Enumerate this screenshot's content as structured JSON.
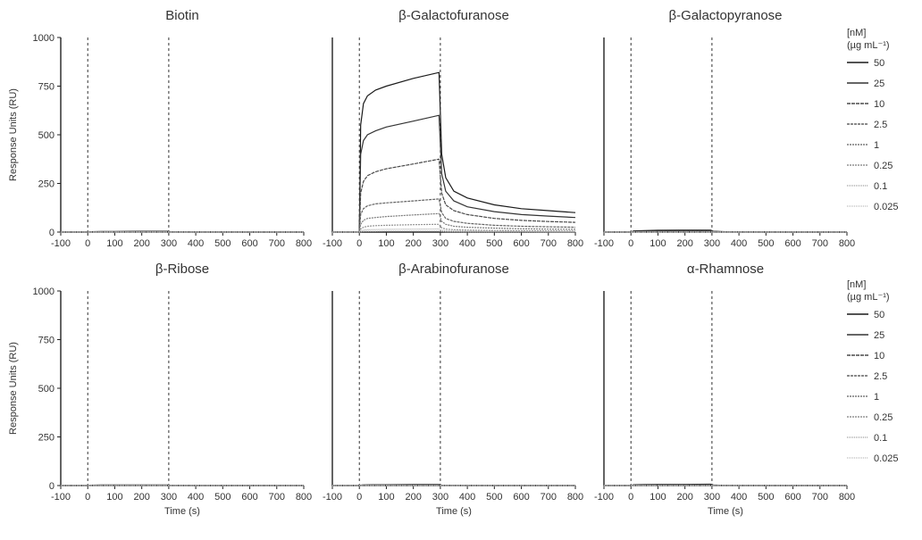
{
  "chart_data": [
    {
      "type": "line",
      "title": "Biotin",
      "xlabel": "",
      "ylabel": "Response Units (RU)",
      "xlim": [
        -100,
        800
      ],
      "ylim": [
        0,
        1000
      ],
      "xticks": [
        "-100",
        "0",
        "100",
        "200",
        "300",
        "400",
        "500",
        "600",
        "700",
        "800"
      ],
      "yticks": [
        "0",
        "250",
        "500",
        "750",
        "1000"
      ],
      "markers": [
        0,
        300
      ],
      "x": [
        -100,
        0,
        10,
        50,
        100,
        200,
        295,
        305,
        350,
        400,
        500,
        600,
        700,
        800
      ],
      "series": [
        {
          "name": "50",
          "values": [
            0,
            0,
            2,
            3,
            3,
            4,
            4,
            2,
            1,
            1,
            1,
            0,
            0,
            0
          ]
        },
        {
          "name": "25",
          "values": [
            0,
            0,
            1,
            2,
            2,
            3,
            3,
            1,
            1,
            0,
            0,
            0,
            0,
            0
          ]
        },
        {
          "name": "10",
          "values": [
            0,
            0,
            1,
            1,
            1,
            2,
            2,
            1,
            0,
            0,
            0,
            0,
            0,
            0
          ]
        },
        {
          "name": "2.5",
          "values": [
            0,
            0,
            0,
            1,
            1,
            1,
            1,
            0,
            0,
            0,
            0,
            0,
            0,
            0
          ]
        },
        {
          "name": "1",
          "values": [
            0,
            0,
            0,
            0,
            1,
            1,
            1,
            0,
            0,
            0,
            0,
            0,
            0,
            0
          ]
        },
        {
          "name": "0.25",
          "values": [
            0,
            0,
            0,
            0,
            0,
            0,
            0,
            0,
            0,
            0,
            0,
            0,
            0,
            0
          ]
        },
        {
          "name": "0.1",
          "values": [
            0,
            0,
            0,
            0,
            0,
            0,
            0,
            0,
            0,
            0,
            0,
            0,
            0,
            0
          ]
        },
        {
          "name": "0.025",
          "values": [
            0,
            0,
            0,
            0,
            0,
            0,
            0,
            0,
            0,
            0,
            0,
            0,
            0,
            0
          ]
        }
      ]
    },
    {
      "type": "line",
      "title": "β-Galactofuranose",
      "xlabel": "",
      "ylabel": "",
      "xlim": [
        -100,
        800
      ],
      "ylim": [
        0,
        1000
      ],
      "xticks": [
        "-100",
        "0",
        "100",
        "200",
        "300",
        "400",
        "500",
        "600",
        "700",
        "800"
      ],
      "yticks": [],
      "markers": [
        0,
        300
      ],
      "x": [
        -100,
        0,
        5,
        15,
        30,
        60,
        100,
        200,
        295,
        305,
        320,
        350,
        400,
        500,
        600,
        700,
        800
      ],
      "series": [
        {
          "name": "50",
          "values": [
            0,
            0,
            550,
            660,
            700,
            730,
            750,
            790,
            820,
            400,
            280,
            210,
            175,
            140,
            120,
            110,
            100
          ]
        },
        {
          "name": "25",
          "values": [
            0,
            0,
            400,
            470,
            500,
            520,
            540,
            570,
            600,
            300,
            210,
            160,
            130,
            105,
            90,
            82,
            75
          ]
        },
        {
          "name": "10",
          "values": [
            0,
            0,
            200,
            260,
            290,
            310,
            325,
            350,
            375,
            200,
            140,
            110,
            90,
            70,
            60,
            54,
            50
          ]
        },
        {
          "name": "2.5",
          "values": [
            0,
            0,
            90,
            120,
            135,
            145,
            150,
            160,
            170,
            100,
            70,
            55,
            45,
            35,
            30,
            27,
            25
          ]
        },
        {
          "name": "1",
          "values": [
            0,
            0,
            40,
            60,
            70,
            75,
            80,
            88,
            95,
            55,
            40,
            30,
            25,
            20,
            17,
            15,
            14
          ]
        },
        {
          "name": "0.25",
          "values": [
            0,
            0,
            15,
            25,
            30,
            33,
            35,
            38,
            40,
            22,
            15,
            12,
            10,
            8,
            7,
            6,
            5
          ]
        },
        {
          "name": "0.1",
          "values": [
            0,
            0,
            5,
            10,
            12,
            13,
            14,
            15,
            16,
            9,
            6,
            5,
            4,
            3,
            3,
            2,
            2
          ]
        },
        {
          "name": "0.025",
          "values": [
            0,
            0,
            2,
            3,
            4,
            4,
            5,
            5,
            5,
            3,
            2,
            2,
            1,
            1,
            1,
            1,
            1
          ]
        }
      ]
    },
    {
      "type": "line",
      "title": "β-Galactopyranose",
      "xlabel": "",
      "ylabel": "",
      "xlim": [
        -100,
        800
      ],
      "ylim": [
        0,
        1000
      ],
      "xticks": [
        "-100",
        "0",
        "100",
        "200",
        "300",
        "400",
        "500",
        "600",
        "700",
        "800"
      ],
      "yticks": [],
      "markers": [
        0,
        300
      ],
      "x": [
        -100,
        0,
        10,
        50,
        100,
        200,
        295,
        305,
        350,
        400,
        500,
        600,
        700,
        800
      ],
      "series": [
        {
          "name": "50",
          "values": [
            0,
            0,
            6,
            8,
            9,
            10,
            10,
            4,
            2,
            1,
            1,
            0,
            0,
            0
          ]
        },
        {
          "name": "25",
          "values": [
            0,
            0,
            4,
            5,
            6,
            6,
            7,
            3,
            1,
            1,
            0,
            0,
            0,
            0
          ]
        },
        {
          "name": "10",
          "values": [
            0,
            0,
            2,
            3,
            3,
            4,
            4,
            2,
            1,
            0,
            0,
            0,
            0,
            0
          ]
        },
        {
          "name": "2.5",
          "values": [
            0,
            0,
            1,
            2,
            2,
            2,
            2,
            1,
            0,
            0,
            0,
            0,
            0,
            0
          ]
        },
        {
          "name": "1",
          "values": [
            0,
            0,
            1,
            1,
            1,
            1,
            1,
            0,
            0,
            0,
            0,
            0,
            0,
            0
          ]
        },
        {
          "name": "0.25",
          "values": [
            0,
            0,
            0,
            0,
            0,
            0,
            0,
            0,
            0,
            0,
            0,
            0,
            0,
            0
          ]
        },
        {
          "name": "0.1",
          "values": [
            0,
            0,
            0,
            0,
            0,
            0,
            0,
            0,
            0,
            0,
            0,
            0,
            0,
            0
          ]
        },
        {
          "name": "0.025",
          "values": [
            0,
            0,
            0,
            0,
            0,
            0,
            0,
            0,
            0,
            0,
            0,
            0,
            0,
            0
          ]
        }
      ]
    },
    {
      "type": "line",
      "title": "β-Ribose",
      "xlabel": "Time (s)",
      "ylabel": "Response Units (RU)",
      "xlim": [
        -100,
        800
      ],
      "ylim": [
        0,
        1000
      ],
      "xticks": [
        "-100",
        "0",
        "100",
        "200",
        "300",
        "400",
        "500",
        "600",
        "700",
        "800"
      ],
      "yticks": [
        "0",
        "250",
        "500",
        "750",
        "1000"
      ],
      "markers": [
        0,
        300
      ],
      "x": [
        -100,
        0,
        10,
        50,
        100,
        200,
        295,
        305,
        350,
        400,
        500,
        600,
        700,
        800
      ],
      "series": [
        {
          "name": "50",
          "values": [
            0,
            0,
            2,
            3,
            3,
            3,
            3,
            1,
            1,
            0,
            0,
            0,
            0,
            0
          ]
        },
        {
          "name": "25",
          "values": [
            0,
            0,
            1,
            2,
            2,
            2,
            2,
            1,
            0,
            0,
            0,
            0,
            0,
            0
          ]
        },
        {
          "name": "10",
          "values": [
            0,
            0,
            1,
            1,
            1,
            1,
            1,
            0,
            0,
            0,
            0,
            0,
            0,
            0
          ]
        },
        {
          "name": "2.5",
          "values": [
            0,
            0,
            0,
            1,
            1,
            1,
            1,
            0,
            0,
            0,
            0,
            0,
            0,
            0
          ]
        },
        {
          "name": "1",
          "values": [
            0,
            0,
            0,
            0,
            0,
            0,
            0,
            0,
            0,
            0,
            0,
            0,
            0,
            0
          ]
        },
        {
          "name": "0.25",
          "values": [
            0,
            0,
            0,
            0,
            0,
            0,
            0,
            0,
            0,
            0,
            0,
            0,
            0,
            0
          ]
        },
        {
          "name": "0.1",
          "values": [
            0,
            0,
            0,
            0,
            0,
            0,
            0,
            0,
            0,
            0,
            0,
            0,
            0,
            0
          ]
        },
        {
          "name": "0.025",
          "values": [
            0,
            0,
            0,
            0,
            0,
            0,
            0,
            0,
            0,
            0,
            0,
            0,
            0,
            0
          ]
        }
      ]
    },
    {
      "type": "line",
      "title": "β-Arabinofuranose",
      "xlabel": "Time (s)",
      "ylabel": "",
      "xlim": [
        -100,
        800
      ],
      "ylim": [
        0,
        1000
      ],
      "xticks": [
        "-100",
        "0",
        "100",
        "200",
        "300",
        "400",
        "500",
        "600",
        "700",
        "800"
      ],
      "yticks": [],
      "markers": [
        0,
        300
      ],
      "x": [
        -100,
        0,
        10,
        50,
        100,
        200,
        295,
        305,
        350,
        400,
        500,
        600,
        700,
        800
      ],
      "series": [
        {
          "name": "50",
          "values": [
            0,
            0,
            3,
            4,
            4,
            5,
            5,
            2,
            1,
            1,
            0,
            0,
            0,
            0
          ]
        },
        {
          "name": "25",
          "values": [
            0,
            0,
            2,
            3,
            3,
            3,
            3,
            1,
            1,
            0,
            0,
            0,
            0,
            0
          ]
        },
        {
          "name": "10",
          "values": [
            0,
            0,
            1,
            2,
            2,
            2,
            2,
            1,
            0,
            0,
            0,
            0,
            0,
            0
          ]
        },
        {
          "name": "2.5",
          "values": [
            0,
            0,
            1,
            1,
            1,
            1,
            1,
            0,
            0,
            0,
            0,
            0,
            0,
            0
          ]
        },
        {
          "name": "1",
          "values": [
            0,
            0,
            0,
            0,
            1,
            1,
            1,
            0,
            0,
            0,
            0,
            0,
            0,
            0
          ]
        },
        {
          "name": "0.25",
          "values": [
            0,
            0,
            0,
            0,
            0,
            0,
            0,
            0,
            0,
            0,
            0,
            0,
            0,
            0
          ]
        },
        {
          "name": "0.1",
          "values": [
            0,
            0,
            0,
            0,
            0,
            0,
            0,
            0,
            0,
            0,
            0,
            0,
            0,
            0
          ]
        },
        {
          "name": "0.025",
          "values": [
            0,
            0,
            0,
            0,
            0,
            0,
            0,
            0,
            0,
            0,
            0,
            0,
            0,
            0
          ]
        }
      ]
    },
    {
      "type": "line",
      "title": "α-Rhamnose",
      "xlabel": "Time (s)",
      "ylabel": "",
      "xlim": [
        -100,
        800
      ],
      "ylim": [
        0,
        1000
      ],
      "xticks": [
        "-100",
        "0",
        "100",
        "200",
        "300",
        "400",
        "500",
        "600",
        "700",
        "800"
      ],
      "yticks": [],
      "markers": [
        0,
        300
      ],
      "x": [
        -100,
        0,
        10,
        50,
        100,
        200,
        295,
        305,
        350,
        400,
        500,
        600,
        700,
        800
      ],
      "series": [
        {
          "name": "50",
          "values": [
            0,
            0,
            4,
            5,
            6,
            6,
            7,
            3,
            1,
            1,
            0,
            0,
            0,
            0
          ]
        },
        {
          "name": "25",
          "values": [
            0,
            0,
            3,
            4,
            4,
            4,
            5,
            2,
            1,
            0,
            0,
            0,
            0,
            0
          ]
        },
        {
          "name": "10",
          "values": [
            0,
            0,
            2,
            2,
            3,
            3,
            3,
            1,
            0,
            0,
            0,
            0,
            0,
            0
          ]
        },
        {
          "name": "2.5",
          "values": [
            0,
            0,
            1,
            1,
            1,
            1,
            1,
            0,
            0,
            0,
            0,
            0,
            0,
            0
          ]
        },
        {
          "name": "1",
          "values": [
            0,
            0,
            0,
            1,
            1,
            1,
            1,
            0,
            0,
            0,
            0,
            0,
            0,
            0
          ]
        },
        {
          "name": "0.25",
          "values": [
            0,
            0,
            0,
            0,
            0,
            0,
            0,
            0,
            0,
            0,
            0,
            0,
            0,
            0
          ]
        },
        {
          "name": "0.1",
          "values": [
            0,
            0,
            0,
            0,
            0,
            0,
            0,
            0,
            0,
            0,
            0,
            0,
            0,
            0
          ]
        },
        {
          "name": "0.025",
          "values": [
            0,
            0,
            0,
            0,
            0,
            0,
            0,
            0,
            0,
            0,
            0,
            0,
            0,
            0
          ]
        }
      ]
    }
  ],
  "legends": [
    {
      "header_line1": "[nM]",
      "header_line2": "(µg mL⁻¹)",
      "items": [
        "50",
        "25",
        "10",
        "2.5",
        "1",
        "0.25",
        "0.1",
        "0.025"
      ]
    },
    {
      "header_line1": "[nM]",
      "header_line2": "(µg mL⁻¹)",
      "items": [
        "50",
        "25",
        "10",
        "2.5",
        "1",
        "0.25",
        "0.1",
        "0.025"
      ]
    }
  ],
  "series_colors": [
    "#1a1a1a",
    "#333333",
    "#4a4a4a",
    "#636363",
    "#7a7a7a",
    "#939393",
    "#aaaaaa",
    "#c4c4c4"
  ],
  "series_dash": [
    "",
    "",
    "4 1",
    "3 1",
    "2 1",
    "2 1",
    "1 1",
    "1 1"
  ]
}
